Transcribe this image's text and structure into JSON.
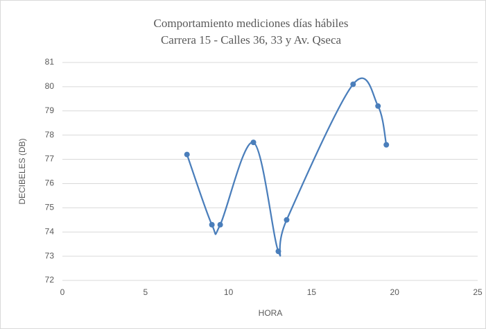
{
  "chart_data": {
    "type": "scatter",
    "smooth": true,
    "title": "Comportamiento mediciones días hábiles",
    "subtitle": "Carrera 15 - Calles 36, 33 y Av. Qseca",
    "x_label": "HORA",
    "y_label": "DECIBELES (DB)",
    "x": [
      7.5,
      9,
      9.5,
      11.5,
      13,
      13.5,
      17.5,
      19,
      19.5
    ],
    "values": [
      77.2,
      74.3,
      74.3,
      77.7,
      73.2,
      74.5,
      80.1,
      79.2,
      77.6
    ],
    "color": "#4a7ebb",
    "xlim": [
      0,
      25
    ],
    "xticks": [
      0,
      5,
      10,
      15,
      20,
      25
    ],
    "ylim": [
      72,
      81
    ],
    "yticks": [
      72,
      73,
      74,
      75,
      76,
      77,
      78,
      79,
      80,
      81
    ],
    "grid": true
  }
}
